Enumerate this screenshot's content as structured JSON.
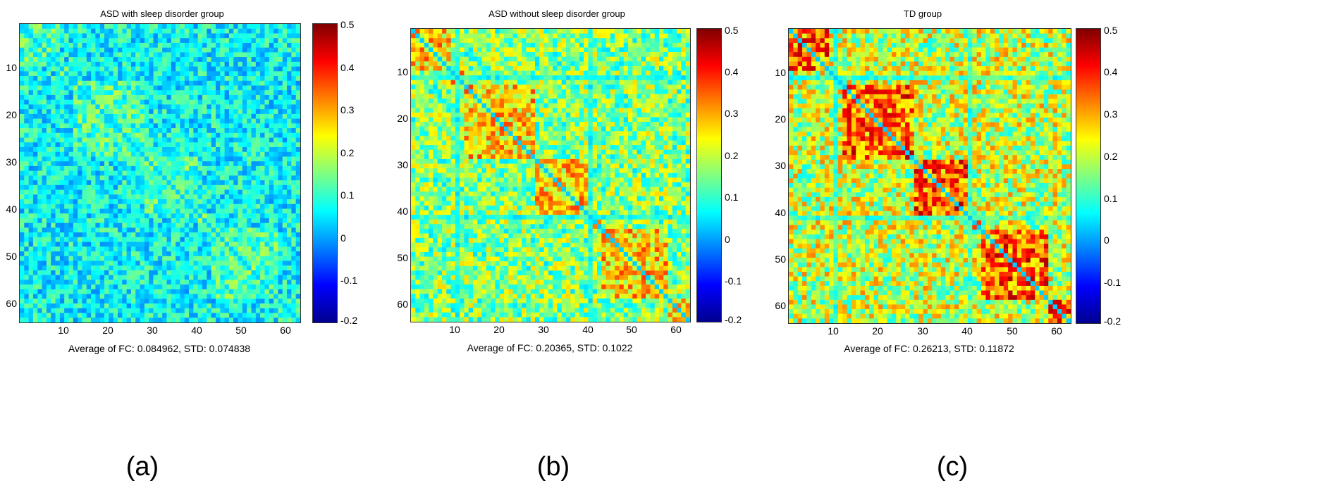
{
  "colormap": [
    "#00008f",
    "#0000ff",
    "#0080ff",
    "#00ffff",
    "#80ff80",
    "#ffff00",
    "#ff8000",
    "#ff0000",
    "#800000"
  ],
  "chart_data": [
    {
      "type": "heatmap",
      "title": "ASD with sleep disorder group",
      "footer": "Average of FC: 0.084962, STD: 0.074838",
      "label": "(a)",
      "n": 63,
      "xticks": [
        "10",
        "20",
        "30",
        "40",
        "50",
        "60"
      ],
      "yticks": [
        "10",
        "20",
        "30",
        "40",
        "50",
        "60"
      ],
      "color_range": [
        -0.2,
        0.5
      ],
      "colorbar_ticks": [
        "0.5",
        "0.4",
        "0.3",
        "0.2",
        "0.1",
        "0",
        "-0.1",
        "-0.2"
      ],
      "mean": 0.084962,
      "std": 0.074838
    },
    {
      "type": "heatmap",
      "title": "ASD without sleep disorder group",
      "footer": "Average of FC: 0.20365, STD: 0.1022",
      "label": "(b)",
      "n": 63,
      "xticks": [
        "10",
        "20",
        "30",
        "40",
        "50",
        "60"
      ],
      "yticks": [
        "10",
        "20",
        "30",
        "40",
        "50",
        "60"
      ],
      "color_range": [
        -0.2,
        0.5
      ],
      "colorbar_ticks": [
        "0.5",
        "0.4",
        "0.3",
        "0.2",
        "0.1",
        "0",
        "-0.1",
        "-0.2"
      ],
      "mean": 0.20365,
      "std": 0.1022
    },
    {
      "type": "heatmap",
      "title": "TD group",
      "footer": "Average of FC: 0.26213, STD: 0.11872",
      "label": "(c)",
      "n": 63,
      "xticks": [
        "10",
        "20",
        "30",
        "40",
        "50",
        "60"
      ],
      "yticks": [
        "10",
        "20",
        "30",
        "40",
        "50",
        "60"
      ],
      "color_range": [
        -0.2,
        0.5
      ],
      "colorbar_ticks": [
        "0.5",
        "0.4",
        "0.3",
        "0.2",
        "0.1",
        "0",
        "-0.1",
        "-0.2"
      ],
      "mean": 0.26213,
      "std": 0.11872
    }
  ]
}
